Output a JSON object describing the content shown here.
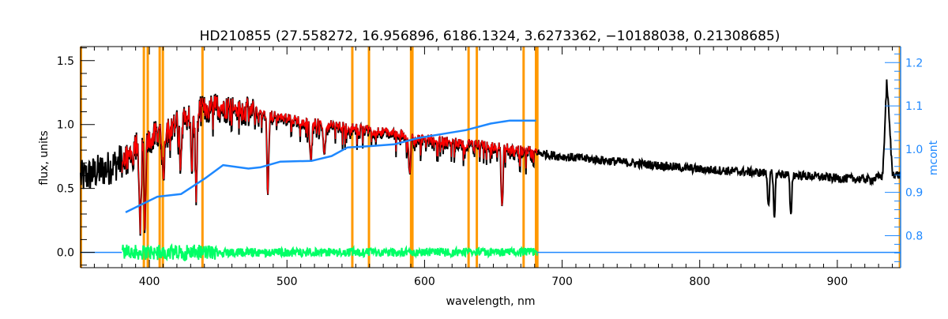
{
  "chart_data": {
    "type": "line",
    "title": "HD210855    (27.558272, 16.956896, 6186.1324, 3.6273362, −10188038, 0.21308685)",
    "xlabel": "wavelength, nm",
    "ylabel": "flux, units",
    "ylabel_right": "mcont",
    "xlim": [
      350,
      946
    ],
    "ylim": [
      -0.12,
      1.61
    ],
    "ylim_right": [
      0.726,
      1.237
    ],
    "x_ticks": [
      400,
      500,
      600,
      700,
      800,
      900
    ],
    "x_tick_labels": [
      "400",
      "500",
      "600",
      "700",
      "800",
      "900"
    ],
    "y_ticks": [
      0.0,
      0.5,
      1.0,
      1.5
    ],
    "y_tick_labels": [
      "0.0",
      "0.5",
      "1.0",
      "1.5"
    ],
    "y_ticks_right": [
      0.8,
      0.9,
      1.0,
      1.1,
      1.2
    ],
    "y_tick_labels_right": [
      "0.8",
      "0.9",
      "1.0",
      "1.1",
      "1.2"
    ],
    "grid": false,
    "colors": {
      "observed": "#000000",
      "model": "#ff0000",
      "residual": "#00ff66",
      "mcont": "#1e88ff",
      "masks": "#ff9900",
      "right_axis": "#1e88ff"
    },
    "series": [
      {
        "name": "observed flux",
        "x": [
          350,
          360,
          370,
          380,
          390,
          400,
          410,
          420,
          430,
          440,
          450,
          460,
          470,
          480,
          500,
          520,
          550,
          580,
          600,
          630,
          650,
          680,
          700,
          750,
          800,
          850,
          900,
          925,
          933,
          936,
          940,
          946
        ],
        "y": [
          0.58,
          0.62,
          0.66,
          0.72,
          0.8,
          0.88,
          0.95,
          1.0,
          1.06,
          1.12,
          1.13,
          1.12,
          1.1,
          1.08,
          1.04,
          1.0,
          0.96,
          0.92,
          0.88,
          0.84,
          0.82,
          0.78,
          0.75,
          0.7,
          0.65,
          0.62,
          0.58,
          0.57,
          0.6,
          1.35,
          0.62,
          0.6
        ]
      },
      {
        "name": "model fit",
        "x_range": [
          380,
          682
        ]
      },
      {
        "name": "mcont",
        "axis": "right",
        "x": [
          382.7,
          405.8,
          423,
          440.3,
          453.6,
          472,
          480.6,
          495,
          518,
          532.5,
          544,
          561,
          578,
          596,
          613,
          630,
          648,
          662,
          681
        ],
        "y": [
          0.854,
          0.89,
          0.896,
          0.932,
          0.963,
          0.955,
          0.958,
          0.971,
          0.973,
          0.984,
          1.004,
          1.007,
          1.011,
          1.026,
          1.035,
          1.044,
          1.059,
          1.066,
          1.066
        ]
      },
      {
        "name": "residuals",
        "x_range": [
          380,
          682
        ],
        "center": 0.0,
        "spread": 0.05
      }
    ],
    "absorption_lines": [
      {
        "nm": 393.4,
        "depth": 0.82
      },
      {
        "nm": 396.8,
        "depth": 0.82
      },
      {
        "nm": 410.2,
        "depth": 0.45
      },
      {
        "nm": 422.7,
        "depth": 0.35
      },
      {
        "nm": 430.8,
        "depth": 0.4
      },
      {
        "nm": 434.0,
        "depth": 0.6
      },
      {
        "nm": 486.1,
        "depth": 0.6
      },
      {
        "nm": 517.3,
        "depth": 0.3
      },
      {
        "nm": 527.0,
        "depth": 0.25
      },
      {
        "nm": 589.3,
        "depth": 0.35
      },
      {
        "nm": 656.3,
        "depth": 0.6
      },
      {
        "nm": 850.0,
        "depth": 0.4
      },
      {
        "nm": 854.2,
        "depth": 0.55
      },
      {
        "nm": 866.2,
        "depth": 0.55
      }
    ],
    "mask_lines_nm": [
      350.3,
      396.0,
      398.8,
      407.5,
      409.8,
      438.6,
      547.5,
      559.6,
      590.2,
      591.2,
      632.0,
      638.0,
      672.0,
      681.0,
      682.0,
      945.5
    ]
  }
}
